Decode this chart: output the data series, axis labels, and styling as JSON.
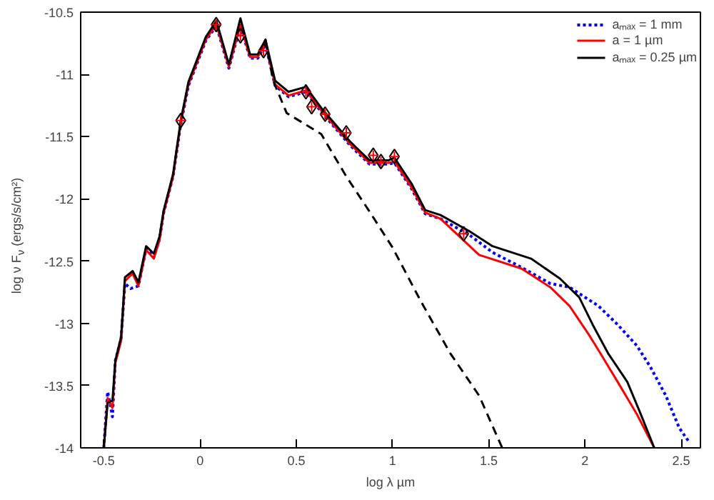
{
  "chart_data": {
    "type": "line",
    "xlabel": "log λ µm",
    "ylabel": "log ν F$_{ν}$ (ergs/s/cm²)",
    "xlim": [
      -0.62,
      2.6
    ],
    "ylim": [
      -14,
      -10.5
    ],
    "xticks": [
      -0.5,
      0,
      0.5,
      1,
      1.5,
      2,
      2.5
    ],
    "yticks": [
      -14,
      -13.5,
      -13,
      -12.5,
      -12,
      -11.5,
      -11,
      -10.5
    ],
    "grid": false,
    "legend": "top right",
    "series": [
      {
        "name": "aₘₐₓ = 1 mm",
        "color": "#0000ff",
        "line_style": "dotted",
        "x": [
          -0.5,
          -0.48,
          -0.47,
          -0.455,
          -0.44,
          -0.41,
          -0.39,
          -0.36,
          -0.32,
          -0.28,
          -0.24,
          -0.21,
          -0.19,
          -0.14,
          -0.1,
          -0.06,
          0.03,
          0.085,
          0.15,
          0.21,
          0.26,
          0.3,
          0.34,
          0.39,
          0.46,
          0.55,
          0.63,
          0.78,
          0.88,
          0.98,
          1.01,
          1.1,
          1.17,
          1.25,
          1.4,
          1.52,
          1.67,
          1.82,
          1.92,
          2.07,
          2.17,
          2.27,
          2.34,
          2.42,
          2.49,
          2.54
        ],
        "values": [
          -14,
          -13.55,
          -13.62,
          -13.75,
          -13.3,
          -13.12,
          -12.68,
          -12.72,
          -12.7,
          -12.4,
          -12.47,
          -12.32,
          -12.12,
          -11.82,
          -11.4,
          -11.09,
          -10.73,
          -10.61,
          -10.95,
          -10.61,
          -10.87,
          -10.87,
          -10.76,
          -11.09,
          -11.18,
          -11.14,
          -11.3,
          -11.57,
          -11.72,
          -11.72,
          -11.71,
          -11.92,
          -12.12,
          -12.16,
          -12.29,
          -12.43,
          -12.55,
          -12.68,
          -12.71,
          -12.86,
          -13.01,
          -13.18,
          -13.35,
          -13.58,
          -13.84,
          -13.95
        ]
      },
      {
        "name": "a = 1 µm",
        "color": "#ff0000",
        "line_style": "solid",
        "x": [
          -0.5,
          -0.48,
          -0.455,
          -0.44,
          -0.41,
          -0.39,
          -0.35,
          -0.32,
          -0.28,
          -0.24,
          -0.21,
          -0.19,
          -0.14,
          -0.1,
          -0.06,
          0.03,
          0.085,
          0.15,
          0.21,
          0.26,
          0.3,
          0.34,
          0.39,
          0.46,
          0.55,
          0.63,
          0.78,
          0.88,
          0.98,
          1.01,
          1.1,
          1.17,
          1.25,
          1.45,
          1.67,
          1.82,
          1.92,
          2.02,
          2.08,
          2.17,
          2.27,
          2.36
        ],
        "values": [
          -14,
          -13.6,
          -13.68,
          -13.32,
          -13.14,
          -12.66,
          -12.6,
          -12.7,
          -12.41,
          -12.48,
          -12.33,
          -12.12,
          -11.82,
          -11.39,
          -11.08,
          -10.72,
          -10.6,
          -10.94,
          -10.6,
          -10.86,
          -10.86,
          -10.75,
          -11.08,
          -11.17,
          -11.13,
          -11.29,
          -11.56,
          -11.71,
          -11.71,
          -11.7,
          -11.91,
          -12.11,
          -12.16,
          -12.45,
          -12.56,
          -12.71,
          -12.86,
          -13.09,
          -13.24,
          -13.47,
          -13.73,
          -14
        ]
      },
      {
        "name": "aₘₐₓ = 0.25 µm",
        "color": "#000000",
        "line_style": "solid",
        "x": [
          -0.5,
          -0.48,
          -0.455,
          -0.44,
          -0.41,
          -0.39,
          -0.35,
          -0.32,
          -0.28,
          -0.24,
          -0.21,
          -0.19,
          -0.14,
          -0.1,
          -0.06,
          0.03,
          0.085,
          0.15,
          0.21,
          0.26,
          0.3,
          0.34,
          0.39,
          0.46,
          0.55,
          0.63,
          0.78,
          0.88,
          0.98,
          1.01,
          1.1,
          1.17,
          1.25,
          1.4,
          1.52,
          1.72,
          1.87,
          1.97,
          2.04,
          2.12,
          2.22,
          2.29,
          2.36
        ],
        "values": [
          -14,
          -13.64,
          -13.62,
          -13.3,
          -13.11,
          -12.63,
          -12.58,
          -12.67,
          -12.38,
          -12.44,
          -12.3,
          -12.1,
          -11.8,
          -11.37,
          -11.06,
          -10.7,
          -10.57,
          -10.92,
          -10.55,
          -10.84,
          -10.84,
          -10.72,
          -11.05,
          -11.14,
          -11.1,
          -11.27,
          -11.54,
          -11.69,
          -11.69,
          -11.67,
          -11.88,
          -12.09,
          -12.13,
          -12.26,
          -12.38,
          -12.48,
          -12.64,
          -12.79,
          -13.01,
          -13.24,
          -13.47,
          -13.73,
          -14
        ]
      },
      {
        "color": "#000000",
        "line_style": "dashed",
        "x": [
          0.34,
          0.38,
          0.45,
          0.63,
          0.76,
          0.88,
          1.0,
          1.15,
          1.3,
          1.45,
          1.57
        ],
        "values": [
          -10.72,
          -11.05,
          -11.31,
          -11.48,
          -11.82,
          -12.1,
          -12.39,
          -12.83,
          -13.24,
          -13.58,
          -14
        ]
      },
      {
        "type": "scatter",
        "marker": "diamond",
        "color": "#000000",
        "x": [
          -0.1,
          0.084,
          0.21,
          0.33,
          0.55,
          0.58,
          0.65,
          0.76,
          0.9,
          0.94,
          1.01,
          1.37
        ],
        "values": [
          -11.37,
          -10.6,
          -10.69,
          -10.81,
          -11.14,
          -11.26,
          -11.32,
          -11.47,
          -11.65,
          -11.7,
          -11.66,
          -12.28
        ]
      },
      {
        "type": "scatter",
        "marker": "cross",
        "color": "#ff0000",
        "x": [
          -0.1,
          0.084,
          0.21,
          0.33,
          0.55,
          0.58,
          0.65,
          0.76,
          0.9,
          0.94,
          1.01,
          1.37
        ],
        "values": [
          -11.37,
          -10.6,
          -10.69,
          -10.81,
          -11.14,
          -11.26,
          -11.32,
          -11.47,
          -11.65,
          -11.7,
          -11.66,
          -12.28
        ]
      }
    ]
  }
}
